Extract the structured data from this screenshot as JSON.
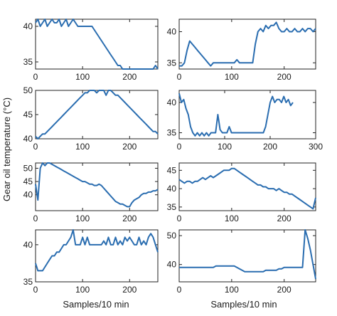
{
  "figure": {
    "ylabel": "Gear oil temperature (°C)",
    "line_color": "#2a6db0"
  },
  "chart_data": [
    {
      "type": "line",
      "xlim": [
        0,
        260
      ],
      "ylim": [
        34,
        41
      ],
      "xticks": [
        0,
        100,
        200
      ],
      "yticks": [
        35,
        40
      ],
      "x": [
        0,
        5,
        10,
        15,
        20,
        25,
        30,
        35,
        40,
        45,
        50,
        55,
        60,
        65,
        70,
        75,
        80,
        85,
        90,
        95,
        100,
        105,
        110,
        115,
        120,
        125,
        130,
        135,
        140,
        145,
        150,
        155,
        160,
        165,
        170,
        175,
        180,
        185,
        190,
        195,
        200,
        205,
        210,
        215,
        220,
        225,
        230,
        235,
        240,
        245,
        250,
        255,
        260
      ],
      "y": [
        40.5,
        41,
        40,
        40.5,
        41,
        40,
        40.5,
        41,
        40.5,
        40.5,
        41,
        40,
        40.5,
        41,
        40,
        40.5,
        41,
        40.5,
        40,
        40,
        40,
        40,
        40,
        40,
        40,
        39.5,
        39,
        38.5,
        38,
        37.5,
        37,
        36.5,
        36,
        35.5,
        35,
        34.5,
        34.5,
        34,
        34,
        34,
        34,
        34,
        34,
        34,
        34,
        34,
        34,
        34,
        34,
        34,
        34,
        34.5,
        34
      ]
    },
    {
      "type": "line",
      "xlim": [
        0,
        260
      ],
      "ylim": [
        34,
        42
      ],
      "xticks": [
        0,
        100,
        200
      ],
      "yticks": [
        35,
        40
      ],
      "x": [
        0,
        5,
        10,
        15,
        20,
        25,
        30,
        35,
        40,
        45,
        50,
        55,
        60,
        65,
        70,
        75,
        80,
        85,
        90,
        95,
        100,
        105,
        110,
        115,
        120,
        125,
        130,
        135,
        140,
        145,
        150,
        155,
        160,
        165,
        170,
        175,
        180,
        185,
        190,
        195,
        200,
        205,
        210,
        215,
        220,
        225,
        230,
        235,
        240,
        245,
        250,
        255,
        260
      ],
      "y": [
        34.5,
        34.5,
        35,
        37,
        38.5,
        38,
        37.5,
        37,
        36.5,
        36,
        35.5,
        35,
        34.5,
        35,
        35,
        35,
        35,
        35,
        35,
        35,
        35,
        35,
        35.5,
        35,
        35,
        35,
        35,
        35,
        35,
        38,
        40,
        40.5,
        40,
        41,
        40.5,
        41,
        41,
        41.5,
        40.5,
        40,
        40,
        40.5,
        40,
        40,
        40.5,
        40,
        40,
        40.5,
        40,
        40.5,
        40.5,
        40,
        40.5
      ]
    },
    {
      "type": "line",
      "xlim": [
        0,
        260
      ],
      "ylim": [
        40,
        50
      ],
      "xticks": [
        0,
        100,
        200
      ],
      "yticks": [
        40,
        45,
        50
      ],
      "x": [
        0,
        5,
        10,
        15,
        20,
        25,
        30,
        35,
        40,
        45,
        50,
        55,
        60,
        65,
        70,
        75,
        80,
        85,
        90,
        95,
        100,
        105,
        110,
        115,
        120,
        125,
        130,
        135,
        140,
        145,
        150,
        155,
        160,
        165,
        170,
        175,
        180,
        185,
        190,
        195,
        200,
        205,
        210,
        215,
        220,
        225,
        230,
        235,
        240,
        245,
        250,
        255,
        260
      ],
      "y": [
        40.5,
        40,
        40.5,
        41,
        41,
        41.5,
        42,
        42.5,
        43,
        43.5,
        44,
        44.5,
        45,
        45.5,
        46,
        46.5,
        47,
        47.5,
        48,
        48.5,
        49,
        49.5,
        49.5,
        50,
        50,
        50,
        49.5,
        50,
        50,
        50,
        49,
        50,
        50,
        49.5,
        49,
        49,
        48.5,
        48,
        47.5,
        47,
        46.5,
        46,
        45.5,
        45,
        44.5,
        44,
        43.5,
        43,
        42.5,
        42,
        41.5,
        41.5,
        41
      ]
    },
    {
      "type": "line",
      "xlim": [
        0,
        300
      ],
      "ylim": [
        34,
        42
      ],
      "xticks": [
        0,
        100,
        200,
        300
      ],
      "yticks": [
        35,
        40
      ],
      "x": [
        0,
        5,
        10,
        15,
        20,
        25,
        30,
        35,
        40,
        45,
        50,
        55,
        60,
        65,
        70,
        75,
        80,
        85,
        90,
        95,
        100,
        105,
        110,
        115,
        120,
        125,
        130,
        135,
        140,
        145,
        150,
        155,
        160,
        165,
        170,
        175,
        180,
        185,
        190,
        195,
        200,
        205,
        210,
        215,
        220,
        225,
        230,
        235,
        240,
        245,
        250
      ],
      "y": [
        41.5,
        40,
        40.5,
        39,
        38,
        36,
        35,
        34.5,
        35,
        34.5,
        35,
        34.5,
        35,
        34.5,
        35,
        35,
        35,
        38,
        35.5,
        35,
        35,
        35,
        36,
        35,
        35,
        35,
        35,
        35,
        35,
        35,
        35,
        35,
        35,
        35,
        35,
        35,
        35,
        35,
        36,
        38,
        40,
        41,
        40,
        40.5,
        40.5,
        40,
        41,
        40,
        40.5,
        39.5,
        40
      ]
    },
    {
      "type": "line",
      "xlim": [
        0,
        260
      ],
      "ylim": [
        34,
        52
      ],
      "xticks": [
        0,
        100,
        200
      ],
      "yticks": [
        40,
        45,
        50
      ],
      "x": [
        0,
        5,
        10,
        15,
        20,
        25,
        30,
        35,
        40,
        45,
        50,
        55,
        60,
        65,
        70,
        75,
        80,
        85,
        90,
        95,
        100,
        105,
        110,
        115,
        120,
        125,
        130,
        135,
        140,
        145,
        150,
        155,
        160,
        165,
        170,
        175,
        180,
        185,
        190,
        195,
        200,
        205,
        210,
        215,
        220,
        225,
        230,
        235,
        240,
        245,
        250,
        255,
        260
      ],
      "y": [
        44,
        38,
        50,
        52,
        51,
        52,
        52,
        51.5,
        51,
        50.5,
        50,
        49.5,
        49,
        48.5,
        48,
        47.5,
        47,
        46.5,
        46,
        45.5,
        45,
        45,
        44.5,
        44,
        44,
        43.5,
        43.5,
        44,
        43.5,
        42.5,
        41.5,
        40.5,
        39.5,
        38.5,
        37.5,
        37,
        36.5,
        36.5,
        36,
        35.5,
        35.5,
        37,
        38,
        38.5,
        39,
        40,
        40.5,
        40.5,
        41,
        41,
        41.5,
        41.5,
        42
      ]
    },
    {
      "type": "line",
      "xlim": [
        0,
        260
      ],
      "ylim": [
        34,
        47
      ],
      "xticks": [
        0,
        100,
        200
      ],
      "yticks": [
        35,
        40,
        45
      ],
      "x": [
        0,
        5,
        10,
        15,
        20,
        25,
        30,
        35,
        40,
        45,
        50,
        55,
        60,
        65,
        70,
        75,
        80,
        85,
        90,
        95,
        100,
        105,
        110,
        115,
        120,
        125,
        130,
        135,
        140,
        145,
        150,
        155,
        160,
        165,
        170,
        175,
        180,
        185,
        190,
        195,
        200,
        205,
        210,
        215,
        220,
        225,
        230,
        235,
        240,
        245,
        250,
        255,
        260
      ],
      "y": [
        42.5,
        42,
        41.5,
        42,
        42,
        41.5,
        42,
        42,
        42.5,
        43,
        42.5,
        43,
        43.5,
        43,
        43.5,
        44,
        44.5,
        45,
        45,
        45,
        45.5,
        45.5,
        45,
        44.5,
        44,
        43.5,
        43,
        42.5,
        42,
        41.5,
        41,
        41,
        40.5,
        40.5,
        40,
        40,
        40,
        39.5,
        40,
        39.5,
        39,
        39,
        38.5,
        38.5,
        38,
        37.5,
        37,
        36.5,
        36,
        35.5,
        35,
        34.5,
        37.5
      ]
    },
    {
      "type": "line",
      "xlim": [
        0,
        260
      ],
      "ylim": [
        35,
        42
      ],
      "xticks": [
        0,
        100,
        200
      ],
      "yticks": [
        35,
        40
      ],
      "x": [
        0,
        5,
        10,
        15,
        20,
        25,
        30,
        35,
        40,
        45,
        50,
        55,
        60,
        65,
        70,
        75,
        80,
        85,
        90,
        95,
        100,
        105,
        110,
        115,
        120,
        125,
        130,
        135,
        140,
        145,
        150,
        155,
        160,
        165,
        170,
        175,
        180,
        185,
        190,
        195,
        200,
        205,
        210,
        215,
        220,
        225,
        230,
        235,
        240,
        245,
        250,
        255,
        260
      ],
      "y": [
        37.5,
        36.5,
        36.5,
        36.5,
        37,
        37.5,
        38,
        38.5,
        38.5,
        39,
        39,
        39.5,
        40,
        40,
        40.5,
        41,
        42,
        40,
        40,
        40,
        41,
        40,
        41,
        40,
        40,
        40,
        40,
        40,
        40,
        40.5,
        40,
        41,
        40,
        40,
        41,
        40,
        40.5,
        40,
        41,
        40.5,
        41,
        40.5,
        40,
        40,
        41,
        40,
        40.5,
        40,
        41,
        41.5,
        41,
        40,
        39
      ]
    },
    {
      "type": "line",
      "xlim": [
        0,
        260
      ],
      "ylim": [
        34,
        52
      ],
      "xticks": [
        0,
        100,
        200
      ],
      "yticks": [
        40,
        50
      ],
      "x": [
        0,
        5,
        10,
        15,
        20,
        25,
        30,
        35,
        40,
        45,
        50,
        55,
        60,
        65,
        70,
        75,
        80,
        85,
        90,
        95,
        100,
        105,
        110,
        115,
        120,
        125,
        130,
        135,
        140,
        145,
        150,
        155,
        160,
        165,
        170,
        175,
        180,
        185,
        190,
        195,
        200,
        205,
        210,
        215,
        220,
        225,
        230,
        235,
        240,
        245,
        250,
        255,
        260
      ],
      "y": [
        39,
        39,
        39,
        39,
        39,
        39,
        39,
        39,
        39,
        39,
        39,
        39,
        39,
        39,
        39.5,
        39.5,
        39.5,
        39.5,
        39.5,
        39.5,
        39.5,
        39.5,
        39,
        38.5,
        38,
        37.5,
        37.5,
        37.5,
        37.5,
        37.5,
        37.5,
        37.5,
        37.5,
        38,
        38,
        38,
        38,
        38,
        38.5,
        38.5,
        39,
        39,
        39,
        39,
        39,
        39,
        39,
        39,
        52,
        49,
        45,
        40,
        35
      ]
    }
  ],
  "axes_labels": {
    "xlabel_left": "Samples/10 min",
    "xlabel_right": "Samples/10 min"
  }
}
